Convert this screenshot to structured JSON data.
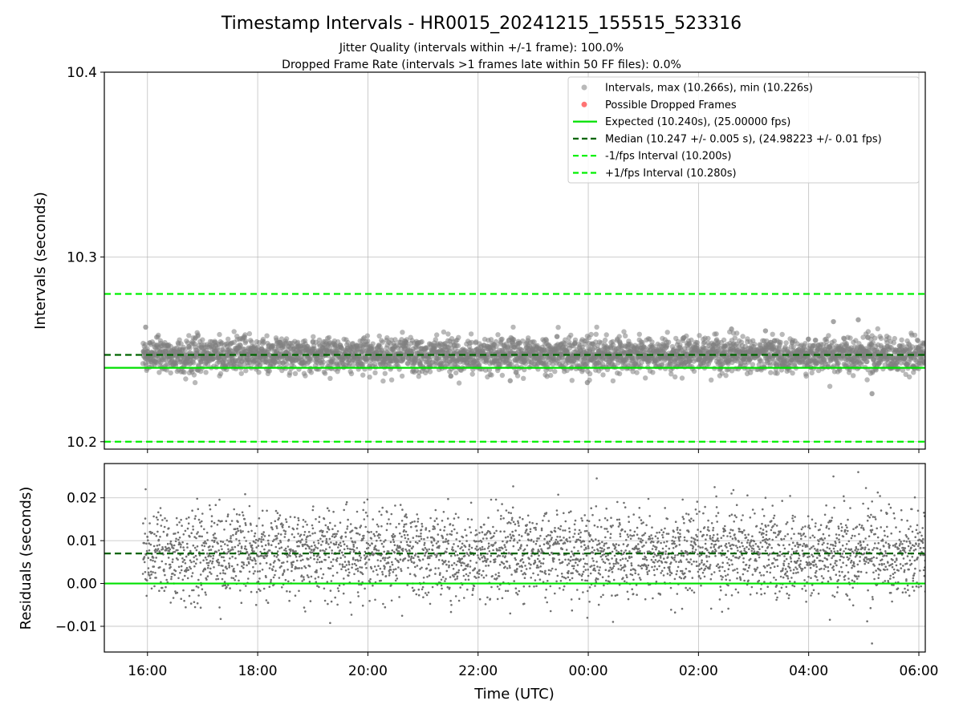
{
  "chart_data": [
    {
      "type": "scatter",
      "title": "Timestamp Intervals - HR0015_20241215_155515_523316",
      "subtitle_lines": [
        "Jitter Quality (intervals within +/-1 frame): 100.0%",
        "Dropped Frame Rate (intervals >1 frames late within 50 FF files): 0.0%"
      ],
      "xlabel": "",
      "ylabel": "Intervals (seconds)",
      "xlim": [
        "2024-12-15 15:13",
        "2024-12-16 06:07"
      ],
      "ylim": [
        10.196,
        10.4
      ],
      "yticks": [
        10.2,
        10.3,
        10.4
      ],
      "ytick_labels": [
        "10.2",
        "10.3",
        "10.4"
      ],
      "xticks": [
        "2024-12-15 16:00",
        "2024-12-15 18:00",
        "2024-12-15 20:00",
        "2024-12-15 22:00",
        "2024-12-16 00:00",
        "2024-12-16 02:00",
        "2024-12-16 04:00",
        "2024-12-16 06:00"
      ],
      "grid": true,
      "legend_position": "top-right",
      "legend": [
        "Intervals, max (10.266s), min (10.226s)",
        "Possible Dropped Frames",
        "Expected (10.240s), (25.00000 fps)",
        "Median (10.247 +/- 0.005 s), (24.98223 +/- 0.01 fps)",
        "-1/fps Interval (10.200s)",
        "+1/fps Interval (10.280s)"
      ],
      "x_range": [
        "2024-12-15 15:55",
        "2024-12-16 06:07"
      ],
      "sample_count": 3570,
      "interval_max": 10.266,
      "interval_min": 10.226,
      "median": 10.247,
      "spread": 0.005,
      "expected": 10.24,
      "minus_one_frame": 10.2,
      "plus_one_frame": 10.28,
      "dropped_frames": 0,
      "outliers": [
        {
          "t": "2024-12-16 05:09",
          "y": 10.226
        },
        {
          "t": "2024-12-16 04:54",
          "y": 10.266
        },
        {
          "t": "2024-12-16 04:27",
          "y": 10.265
        },
        {
          "t": "2024-12-15 15:58",
          "y": 10.262
        },
        {
          "t": "2024-12-16 02:36",
          "y": 10.261
        },
        {
          "t": "2024-12-16 03:13",
          "y": 10.26
        },
        {
          "t": "2024-12-15 23:59",
          "y": 10.232
        },
        {
          "t": "2024-12-15 22:35",
          "y": 10.233
        }
      ],
      "colors": {
        "points": "#808080",
        "dropped": "#ff0000",
        "expected": "#00e000",
        "median": "#006400",
        "bounds": "#00f000"
      }
    },
    {
      "type": "scatter",
      "title": "",
      "xlabel": "Time (UTC)",
      "ylabel": "Residuals (seconds)",
      "xlim": [
        "2024-12-15 15:13",
        "2024-12-16 06:07"
      ],
      "ylim": [
        -0.016,
        0.028
      ],
      "yticks": [
        -0.01,
        0.0,
        0.01,
        0.02
      ],
      "ytick_labels": [
        "−0.01",
        "0.00",
        "0.01",
        "0.02"
      ],
      "xticks": [
        "2024-12-15 16:00",
        "2024-12-15 18:00",
        "2024-12-15 20:00",
        "2024-12-15 22:00",
        "2024-12-16 00:00",
        "2024-12-16 02:00",
        "2024-12-16 04:00",
        "2024-12-16 06:00"
      ],
      "xtick_labels": [
        "16:00",
        "18:00",
        "20:00",
        "22:00",
        "00:00",
        "02:00",
        "04:00",
        "06:00"
      ],
      "grid": true,
      "median_residual": 0.007,
      "expected_residual": 0.0,
      "residual_max": 0.026,
      "residual_min": -0.014,
      "colors": {
        "points": "#707070",
        "expected": "#00e000",
        "median": "#006400"
      }
    }
  ]
}
